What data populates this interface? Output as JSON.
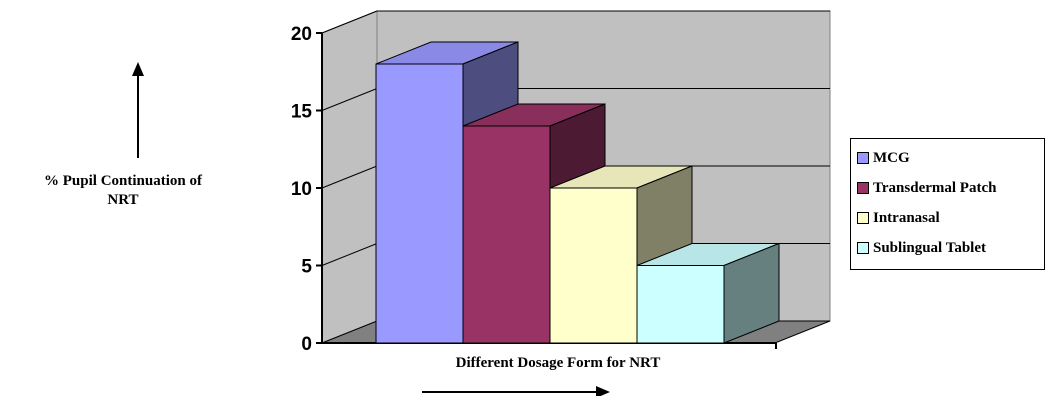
{
  "chart_data": {
    "type": "bar",
    "title": "",
    "xlabel": "Different Dosage Form for NRT",
    "ylabel_lines": [
      "% Pupil Continuation of",
      "NRT"
    ],
    "ylim": [
      0,
      20
    ],
    "yticks": [
      0,
      5,
      10,
      15,
      20
    ],
    "grid": true,
    "legend_position": "right",
    "series": [
      {
        "name": "MCG",
        "value": 18,
        "color": "#9999ff"
      },
      {
        "name": "Transdermal Patch",
        "value": 14,
        "color": "#993366"
      },
      {
        "name": "Intranasal",
        "value": 10,
        "color": "#ffffcc"
      },
      {
        "name": "Sublingual Tablet",
        "value": 5,
        "color": "#ccffff"
      }
    ],
    "wall_color": "#c0c0c0",
    "floor_color": "#808080"
  }
}
